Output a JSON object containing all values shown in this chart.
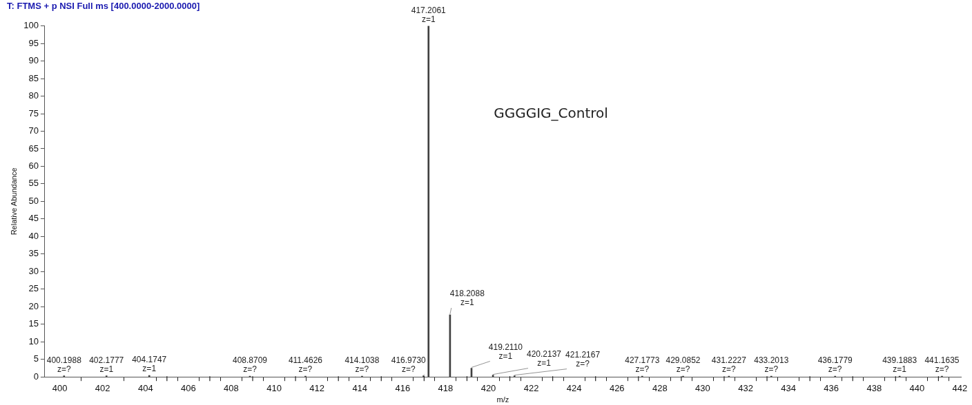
{
  "chart_data": {
    "type": "bar",
    "title": "T: FTMS + p NSI Full ms [400.0000-2000.0000]",
    "xlabel": "m/z",
    "ylabel": "Relative Abundance",
    "x": [
      400.1988,
      402.1777,
      404.1747,
      408.8709,
      411.4626,
      414.1038,
      416.973,
      417.2061,
      418.2088,
      419.211,
      420.2137,
      421.2167,
      427.1773,
      429.0852,
      431.2227,
      433.2013,
      436.1779,
      439.1883,
      441.1635
    ],
    "values": [
      0.3,
      0.3,
      0.4,
      0.2,
      0.2,
      0.2,
      0.3,
      100,
      17.7,
      2.5,
      0.5,
      0.3,
      0.2,
      0.2,
      0.2,
      0.2,
      0.2,
      0.2,
      0.2
    ],
    "color": "#404040",
    "xlim": [
      399.3,
      442.05
    ],
    "xticks": [
      400,
      402,
      404,
      {
        "value": 405,
        "label": null
      },
      406,
      {
        "value": 407,
        "label": null
      },
      408,
      {
        "value": 409,
        "label": null
      },
      410,
      {
        "value": 411,
        "label": null
      },
      412,
      {
        "value": 413,
        "label": null
      },
      414,
      {
        "value": 415,
        "label": null
      },
      416,
      {
        "value": 417,
        "label": null
      },
      418,
      {
        "value": 419,
        "label": null
      },
      420,
      {
        "value": 421,
        "label": null
      },
      422,
      {
        "value": 423,
        "label": null
      },
      424,
      {
        "value": 425,
        "label": null
      },
      426,
      {
        "value": 427,
        "label": null
      },
      428,
      {
        "value": 429,
        "label": null
      },
      430,
      {
        "value": 431,
        "label": null
      },
      432,
      {
        "value": 433,
        "label": null
      },
      434,
      {
        "value": 435,
        "label": null
      },
      436,
      {
        "value": 437,
        "label": null
      },
      438,
      {
        "value": 439,
        "label": null
      },
      440,
      {
        "value": 441,
        "label": null
      },
      442
    ],
    "ylim": [
      0,
      100
    ],
    "yticks": [
      0,
      5,
      10,
      15,
      20,
      25,
      30,
      35,
      40,
      45,
      50,
      55,
      60,
      65,
      70,
      75,
      80,
      85,
      90,
      95,
      100
    ],
    "annotations": [
      {
        "text": "400.1988\nz=?",
        "x": 400.1988,
        "y": 0.3
      },
      {
        "text": "402.1777\nz=1",
        "x": 402.1777,
        "y": 0.3
      },
      {
        "text": "404.1747\nz=1",
        "x": 404.1747,
        "y": 0.4
      },
      {
        "text": "408.8709\nz=?",
        "x": 408.8709,
        "y": 0.2
      },
      {
        "text": "411.4626\nz=?",
        "x": 411.4626,
        "y": 0.2
      },
      {
        "text": "414.1038\nz=?",
        "x": 414.1038,
        "y": 0.2
      },
      {
        "text": "416.9730\nz=?",
        "x": 416.973,
        "y": 0.3
      },
      {
        "text": "417.2061\nz=1",
        "x": 417.2061,
        "y": 100
      },
      {
        "text": "418.2088\nz=1",
        "x": 418.2088,
        "y": 17.7
      },
      {
        "text": "419.2110\nz=1",
        "x": 419.211,
        "y": 2.5
      },
      {
        "text": "420.2137\nz=1",
        "x": 420.2137,
        "y": 0.5
      },
      {
        "text": "421.2167\nz=?",
        "x": 421.2167,
        "y": 0.3
      },
      {
        "text": "427.1773\nz=?",
        "x": 427.1773,
        "y": 0.2
      },
      {
        "text": "429.0852\nz=?",
        "x": 429.0852,
        "y": 0.2
      },
      {
        "text": "431.2227\nz=?",
        "x": 431.2227,
        "y": 0.2
      },
      {
        "text": "433.2013\nz=?",
        "x": 433.2013,
        "y": 0.2
      },
      {
        "text": "436.1779\nz=?",
        "x": 436.1779,
        "y": 0.2
      },
      {
        "text": "439.1883\nz=1",
        "x": 439.1883,
        "y": 0.2
      },
      {
        "text": "441.1635\nz=?",
        "x": 441.1635,
        "y": 0.2
      },
      "GGGGIG_Control"
    ]
  }
}
